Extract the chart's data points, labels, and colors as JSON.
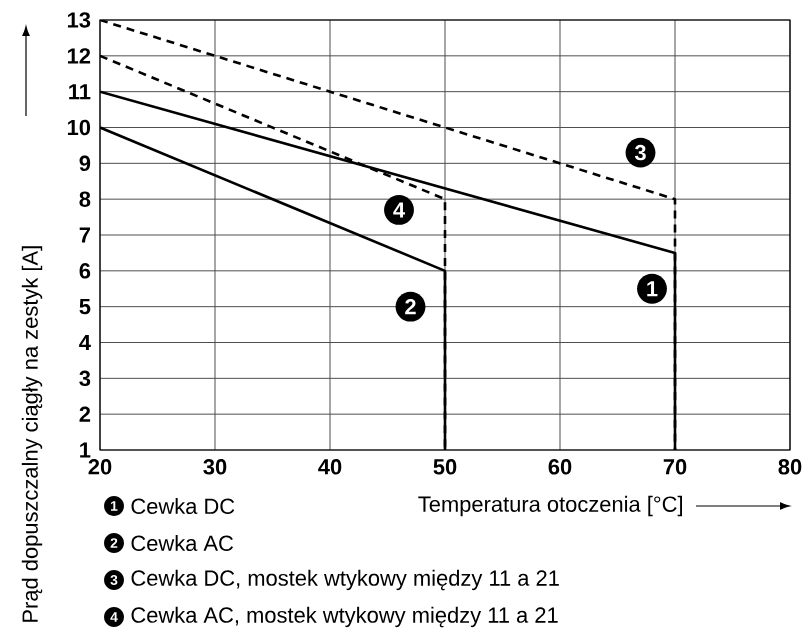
{
  "chart_data": {
    "type": "line",
    "xlabel": "Temperatura otoczenia [°C]",
    "ylabel": "Prąd dopuszczalny ciągły na zestyk [A]",
    "xlim": [
      20,
      80
    ],
    "ylim": [
      1,
      13
    ],
    "xticks": [
      20,
      30,
      40,
      50,
      60,
      70,
      80
    ],
    "yticks": [
      1,
      2,
      3,
      4,
      5,
      6,
      7,
      8,
      9,
      10,
      11,
      12,
      13
    ],
    "grid": true,
    "legend": "bottom",
    "series": [
      {
        "name": "Cewka DC",
        "color": "#000000",
        "line_style": "solid",
        "x": [
          20,
          70,
          70
        ],
        "values": [
          11,
          6.5,
          1
        ]
      },
      {
        "name": "Cewka AC",
        "color": "#000000",
        "line_style": "solid",
        "x": [
          20,
          50,
          50
        ],
        "values": [
          10,
          6,
          1
        ]
      },
      {
        "name": "Cewka DC, mostek wtykowy między 11 a 21",
        "color": "#000000",
        "line_style": "dashed",
        "x": [
          20,
          70,
          70
        ],
        "values": [
          13,
          8,
          1
        ]
      },
      {
        "name": "Cewka AC, mostek wtykowy między 11 a 21",
        "color": "#000000",
        "line_style": "dashed",
        "x": [
          20,
          50,
          50
        ],
        "values": [
          12,
          8,
          1
        ]
      }
    ],
    "annotations": [
      {
        "text": "1",
        "x": 68,
        "y": 5.5
      },
      {
        "text": "2",
        "x": 47,
        "y": 5
      },
      {
        "text": "3",
        "x": 67,
        "y": 9.3
      },
      {
        "text": "4",
        "x": 46,
        "y": 7.7
      }
    ]
  }
}
